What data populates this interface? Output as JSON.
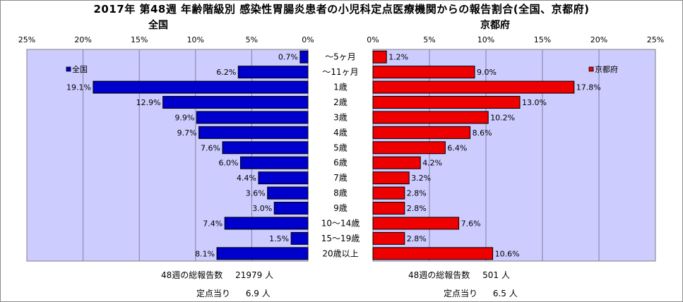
{
  "title": "2017年 第48週 年齢階級別 感染性胃腸炎患者の小児科定点医療機関からの報告割合(全国、京都府)",
  "colors": {
    "plot_bg": "#ccccff",
    "national": "#0000cc",
    "kyoto": "#ee0000",
    "grid": "#8080a0"
  },
  "chart_data": [
    {
      "type": "bar",
      "orientation": "horizontal-reversed",
      "panel_title": "全国",
      "legend": "全国",
      "legend_position": "top-left",
      "xlim": [
        0,
        25
      ],
      "tick_labels": [
        "25%",
        "20%",
        "15%",
        "10%",
        "5%",
        "0%"
      ],
      "categories": [
        "～5ヶ月",
        "～11ヶ月",
        "1歳",
        "2歳",
        "3歳",
        "4歳",
        "5歳",
        "6歳",
        "7歳",
        "8歳",
        "9歳",
        "10～14歳",
        "15～19歳",
        "20歳以上"
      ],
      "values": [
        0.7,
        6.2,
        19.1,
        12.9,
        9.9,
        9.7,
        7.6,
        6.0,
        4.4,
        3.6,
        3.0,
        7.4,
        1.5,
        8.1
      ],
      "value_labels": [
        "0.7%",
        "6.2%",
        "19.1%",
        "12.9%",
        "9.9%",
        "9.7%",
        "7.6%",
        "6.0%",
        "4.4%",
        "3.6%",
        "3.0%",
        "7.4%",
        "1.5%",
        "8.1%"
      ],
      "grid": true
    },
    {
      "type": "bar",
      "orientation": "horizontal",
      "panel_title": "京都府",
      "legend": "京都府",
      "legend_position": "top-right",
      "xlim": [
        0,
        25
      ],
      "tick_labels": [
        "0%",
        "5%",
        "10%",
        "15%",
        "20%",
        "25%"
      ],
      "categories": [
        "～5ヶ月",
        "～11ヶ月",
        "1歳",
        "2歳",
        "3歳",
        "4歳",
        "5歳",
        "6歳",
        "7歳",
        "8歳",
        "9歳",
        "10～14歳",
        "15～19歳",
        "20歳以上"
      ],
      "values": [
        1.2,
        9.0,
        17.8,
        13.0,
        10.2,
        8.6,
        6.4,
        4.2,
        3.2,
        2.8,
        2.8,
        7.6,
        2.8,
        10.6
      ],
      "value_labels": [
        "1.2%",
        "9.0%",
        "17.8%",
        "13.0%",
        "10.2%",
        "8.6%",
        "6.4%",
        "4.2%",
        "3.2%",
        "2.8%",
        "2.8%",
        "7.6%",
        "2.8%",
        "10.6%"
      ],
      "grid": true
    }
  ],
  "stats": {
    "national": {
      "total_label": "48週の総報告数",
      "total_value": "21979 人",
      "per_label": "定点当り",
      "per_value": "6.9 人"
    },
    "kyoto": {
      "total_label": "48週の総報告数",
      "total_value": "501 人",
      "per_label": "定点当り",
      "per_value": "6.5 人"
    }
  }
}
